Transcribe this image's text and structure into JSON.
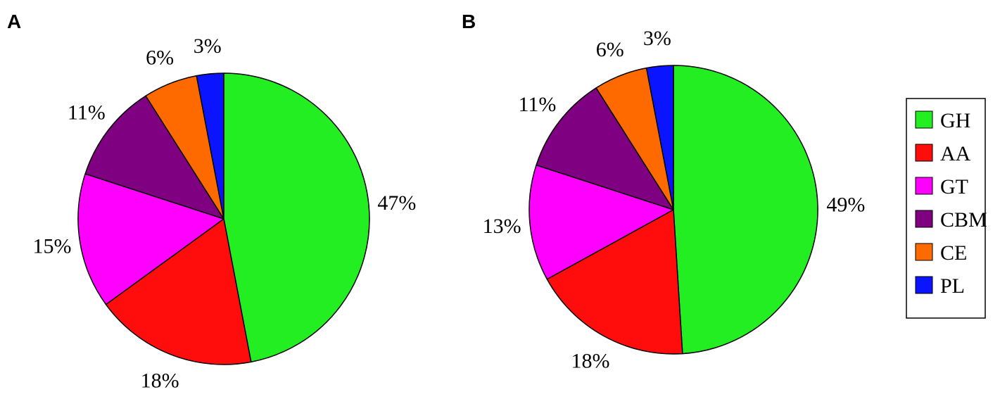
{
  "chart_data": [
    {
      "type": "pie",
      "panel_label": "A",
      "categories": [
        "GH",
        "AA",
        "GT",
        "CBM",
        "CE",
        "PL"
      ],
      "values": [
        47,
        18,
        15,
        11,
        6,
        3
      ],
      "labels": [
        "47%",
        "18%",
        "15%",
        "11%",
        "6%",
        "3%"
      ],
      "start": "12 o'clock",
      "direction": "clockwise"
    },
    {
      "type": "pie",
      "panel_label": "B",
      "categories": [
        "GH",
        "AA",
        "GT",
        "CBM",
        "CE",
        "PL"
      ],
      "values": [
        49,
        18,
        13,
        11,
        6,
        3
      ],
      "labels": [
        "49%",
        "18%",
        "13%",
        "11%",
        "6%",
        "3%"
      ],
      "start": "12 o'clock",
      "direction": "clockwise"
    }
  ],
  "legend": {
    "placement": "right",
    "items": [
      {
        "name": "GH",
        "color": "#22ee22"
      },
      {
        "name": "AA",
        "color": "#ff0d0d"
      },
      {
        "name": "GT",
        "color": "#ff00ff"
      },
      {
        "name": "CBM",
        "color": "#7f0080"
      },
      {
        "name": "CE",
        "color": "#ff6a00"
      },
      {
        "name": "PL",
        "color": "#0a14ff"
      }
    ]
  }
}
